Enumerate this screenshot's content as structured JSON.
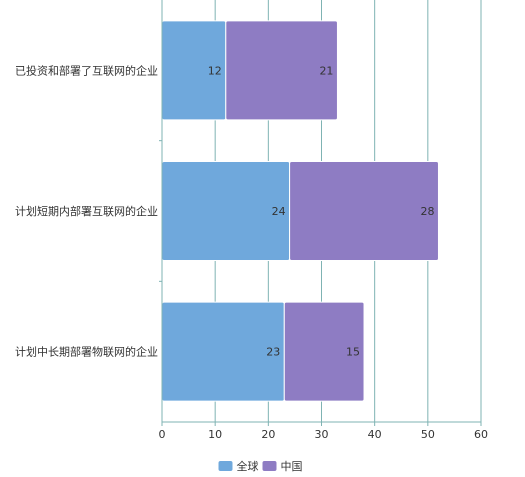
{
  "chart_data": {
    "type": "bar",
    "orientation": "horizontal",
    "stacked": true,
    "categories": [
      "已投资和部署了互联网的企业",
      "计划短期内部署互联网的企业",
      "计划中长期部署物联网的企业"
    ],
    "series": [
      {
        "name": "全球",
        "values": [
          12,
          24,
          23
        ],
        "color": "#6fa8dc"
      },
      {
        "name": "中国",
        "values": [
          21,
          28,
          15
        ],
        "color": "#8e7cc3"
      }
    ],
    "xlim": [
      0,
      60
    ],
    "xticks": [
      0,
      10,
      20,
      30,
      40,
      50,
      60
    ],
    "grid": "vertical",
    "legend_position": "bottom-center",
    "colors": {
      "gridline": "#7fb3b3",
      "axis": "#7fb3b3",
      "bar_stroke": "#ffffff",
      "text": "#333333"
    }
  }
}
